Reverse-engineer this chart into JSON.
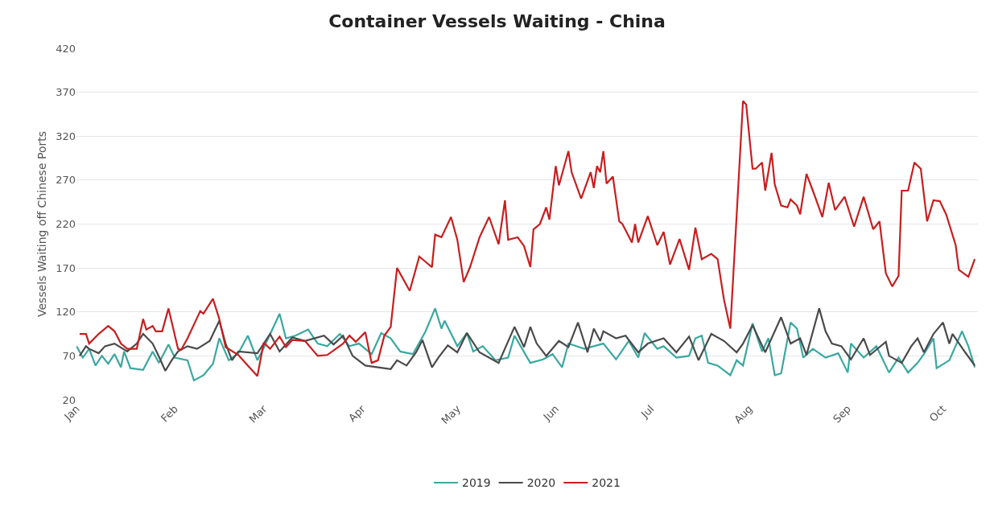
{
  "chart_data": {
    "type": "line",
    "title": "Container Vessels Waiting - China",
    "ylabel": "Vessels Waiting off Chinese Ports",
    "xlim": [
      "--01-01",
      "--10-12"
    ],
    "xticks": [
      {
        "value": "--01-01",
        "label": "Jan"
      },
      {
        "value": "--02-01",
        "label": "Feb"
      },
      {
        "value": "--03-01",
        "label": "Mar"
      },
      {
        "value": "--04-01",
        "label": "Apr"
      },
      {
        "value": "--05-01",
        "label": "May"
      },
      {
        "value": "--06-01",
        "label": "Jun"
      },
      {
        "value": "--07-01",
        "label": "Jul"
      },
      {
        "value": "--08-01",
        "label": "Aug"
      },
      {
        "value": "--09-01",
        "label": "Sep"
      },
      {
        "value": "--10-01",
        "label": "Oct"
      }
    ],
    "ylim": [
      20,
      420
    ],
    "yticks": [
      20,
      70,
      120,
      170,
      220,
      270,
      320,
      370,
      420
    ],
    "grid": "y",
    "legend": "bottom",
    "marker": "none",
    "line_style": "solid",
    "series": [
      {
        "name": "2019",
        "color": "#3aa8a0",
        "x": [
          "--01-01",
          "--01-03",
          "--01-05",
          "--01-07",
          "--01-09",
          "--01-11",
          "--01-13",
          "--01-15",
          "--01-16",
          "--01-18",
          "--01-22",
          "--01-25",
          "--01-27",
          "--01-30",
          "--02-01",
          "--02-05",
          "--02-07",
          "--02-10",
          "--02-13",
          "--02-15",
          "--02-18",
          "--02-21",
          "--02-24",
          "--02-27",
          "--03-01",
          "--03-06",
          "--03-08",
          "--03-11",
          "--03-15",
          "--03-18",
          "--03-21",
          "--03-25",
          "--03-28",
          "--03-31",
          "--04-04",
          "--04-07",
          "--04-10",
          "--04-13",
          "--04-17",
          "--04-21",
          "--04-24",
          "--04-26",
          "--04-27",
          "--05-01",
          "--05-04",
          "--05-06",
          "--05-09",
          "--05-13",
          "--05-17",
          "--05-19",
          "--05-24",
          "--05-28",
          "--05-31",
          "--06-03",
          "--06-05",
          "--06-10",
          "--06-16",
          "--06-20",
          "--06-24",
          "--06-27",
          "--06-29",
          "--07-03",
          "--07-05",
          "--07-09",
          "--07-13",
          "--07-15",
          "--07-17",
          "--07-19",
          "--07-22",
          "--07-26",
          "--07-28",
          "--07-30",
          "--08-02",
          "--08-05",
          "--08-07",
          "--08-09",
          "--08-11",
          "--08-14",
          "--08-16",
          "--08-18",
          "--08-21",
          "--08-25",
          "--08-29",
          "--09-01",
          "--09-02",
          "--09-06",
          "--09-10",
          "--09-14",
          "--09-17",
          "--09-20",
          "--09-23",
          "--09-25",
          "--09-28",
          "--09-29",
          "--10-03",
          "--10-07",
          "--10-09",
          "--10-11"
        ],
        "values": [
          81,
          68,
          78,
          59,
          70,
          61,
          72,
          57,
          75,
          56,
          54,
          75,
          62,
          83,
          68,
          65,
          42,
          48,
          61,
          90,
          65,
          73,
          93,
          65,
          79,
          118,
          90,
          93,
          100,
          84,
          81,
          95,
          81,
          84,
          72,
          96,
          90,
          75,
          72,
          98,
          124,
          101,
          110,
          81,
          96,
          75,
          81,
          65,
          68,
          93,
          62,
          66,
          72,
          57,
          84,
          78,
          84,
          66,
          87,
          68,
          96,
          78,
          81,
          68,
          70,
          90,
          93,
          62,
          59,
          48,
          65,
          59,
          107,
          75,
          90,
          48,
          50,
          108,
          101,
          68,
          78,
          68,
          73,
          51,
          84,
          68,
          81,
          51,
          68,
          51,
          62,
          72,
          90,
          56,
          65,
          98,
          81,
          57
        ]
      },
      {
        "name": "2020",
        "color": "#4a4a4a",
        "x": [
          "--01-02",
          "--01-04",
          "--01-05",
          "--01-08",
          "--01-10",
          "--01-13",
          "--01-17",
          "--01-20",
          "--01-22",
          "--01-25",
          "--01-27",
          "--01-29",
          "--01-31",
          "--02-02",
          "--02-05",
          "--02-08",
          "--02-12",
          "--02-15",
          "--02-17",
          "--02-19",
          "--02-21",
          "--02-27",
          "--03-03",
          "--03-06",
          "--03-10",
          "--03-14",
          "--03-20",
          "--03-23",
          "--03-26",
          "--03-29",
          "--04-02",
          "--04-06",
          "--04-10",
          "--04-12",
          "--04-15",
          "--04-18",
          "--04-20",
          "--04-23",
          "--04-25",
          "--04-28",
          "--05-01",
          "--05-04",
          "--05-08",
          "--05-14",
          "--05-19",
          "--05-22",
          "--05-24",
          "--05-26",
          "--05-29",
          "--06-02",
          "--06-05",
          "--06-08",
          "--06-11",
          "--06-13",
          "--06-15",
          "--06-16",
          "--06-20",
          "--06-23",
          "--06-27",
          "--06-30",
          "--07-05",
          "--07-09",
          "--07-13",
          "--07-16",
          "--07-20",
          "--07-24",
          "--07-28",
          "--07-30",
          "--08-02",
          "--08-06",
          "--08-11",
          "--08-14",
          "--08-17",
          "--08-19",
          "--08-23",
          "--08-25",
          "--08-27",
          "--08-30",
          "--09-02",
          "--09-06",
          "--09-08",
          "--09-13",
          "--09-14",
          "--09-18",
          "--09-21",
          "--09-23",
          "--09-25",
          "--09-28",
          "--10-01",
          "--10-03",
          "--10-04",
          "--10-08",
          "--10-11"
        ],
        "values": [
          70,
          81,
          78,
          73,
          81,
          84,
          75,
          84,
          95,
          84,
          69,
          53,
          65,
          75,
          81,
          78,
          87,
          110,
          84,
          65,
          75,
          73,
          95,
          75,
          91,
          87,
          93,
          83,
          93,
          70,
          59,
          57,
          55,
          65,
          59,
          74,
          88,
          57,
          68,
          82,
          74,
          96,
          74,
          62,
          103,
          80,
          103,
          84,
          70,
          87,
          80,
          108,
          74,
          101,
          87,
          98,
          90,
          93,
          74,
          84,
          90,
          74,
          92,
          65,
          95,
          87,
          74,
          84,
          105,
          74,
          114,
          84,
          90,
          71,
          124,
          98,
          84,
          81,
          66,
          90,
          71,
          86,
          70,
          62,
          81,
          90,
          74,
          95,
          108,
          84,
          95,
          74,
          59
        ]
      },
      {
        "name": "2021",
        "color": "#c81e1e",
        "x": [
          "--01-02",
          "--01-04",
          "--01-05",
          "--01-08",
          "--01-11",
          "--01-13",
          "--01-15",
          "--01-17",
          "--01-20",
          "--01-22",
          "--01-23",
          "--01-25",
          "--01-26",
          "--01-28",
          "--01-30",
          "--02-02",
          "--02-03",
          "--02-05",
          "--02-09",
          "--02-10",
          "--02-13",
          "--02-15",
          "--02-17",
          "--02-21",
          "--02-24",
          "--02-27",
          "--03-01",
          "--03-03",
          "--03-06",
          "--03-08",
          "--03-10",
          "--03-14",
          "--03-18",
          "--03-21",
          "--03-26",
          "--03-28",
          "--03-30",
          "--04-02",
          "--04-04",
          "--04-06",
          "--04-08",
          "--04-10",
          "--04-12",
          "--04-16",
          "--04-19",
          "--04-21",
          "--04-23",
          "--04-24",
          "--04-26",
          "--04-29",
          "--05-01",
          "--05-03",
          "--05-05",
          "--05-08",
          "--05-11",
          "--05-14",
          "--05-16",
          "--05-17",
          "--05-20",
          "--05-22",
          "--05-24",
          "--05-25",
          "--05-27",
          "--05-29",
          "--05-30",
          "--06-01",
          "--06-02",
          "--06-05",
          "--06-06",
          "--06-09",
          "--06-12",
          "--06-13",
          "--06-14",
          "--06-15",
          "--06-16",
          "--06-17",
          "--06-19",
          "--06-21",
          "--06-22",
          "--06-25",
          "--06-26",
          "--06-27",
          "--06-30",
          "--07-03",
          "--07-05",
          "--07-07",
          "--07-10",
          "--07-13",
          "--07-15",
          "--07-17",
          "--07-20",
          "--07-22",
          "--07-24",
          "--07-26",
          "--07-30",
          "--07-31",
          "--08-02",
          "--08-03",
          "--08-05",
          "--08-06",
          "--08-08",
          "--08-09",
          "--08-11",
          "--08-13",
          "--08-14",
          "--08-16",
          "--08-17",
          "--08-19",
          "--08-21",
          "--08-24",
          "--08-26",
          "--08-28",
          "--08-31",
          "--09-03",
          "--09-06",
          "--09-09",
          "--09-11",
          "--09-13",
          "--09-15",
          "--09-17",
          "--09-18",
          "--09-20",
          "--09-22",
          "--09-24",
          "--09-26",
          "--09-28",
          "--09-30",
          "--10-02",
          "--10-05",
          "--10-06",
          "--10-09",
          "--10-11"
        ],
        "values": [
          95,
          95,
          84,
          95,
          104,
          98,
          84,
          78,
          78,
          112,
          100,
          104,
          98,
          98,
          124,
          78,
          77,
          90,
          121,
          118,
          135,
          112,
          80,
          71,
          59,
          47,
          85,
          78,
          92,
          80,
          88,
          87,
          70,
          71,
          84,
          93,
          86,
          97,
          62,
          65,
          93,
          103,
          170,
          144,
          183,
          177,
          171,
          208,
          205,
          228,
          202,
          154,
          171,
          205,
          228,
          197,
          247,
          202,
          205,
          195,
          171,
          214,
          220,
          239,
          225,
          286,
          264,
          303,
          279,
          249,
          279,
          261,
          286,
          279,
          303,
          266,
          274,
          223,
          220,
          199,
          220,
          199,
          229,
          196,
          211,
          174,
          203,
          168,
          216,
          180,
          186,
          180,
          134,
          101,
          360,
          356,
          283,
          283,
          290,
          258,
          301,
          265,
          241,
          239,
          248,
          241,
          231,
          277,
          258,
          228,
          267,
          236,
          251,
          217,
          251,
          214,
          223,
          164,
          149,
          161,
          258,
          258,
          290,
          283,
          223,
          247,
          246,
          231,
          196,
          168,
          160,
          180
        ]
      }
    ]
  }
}
